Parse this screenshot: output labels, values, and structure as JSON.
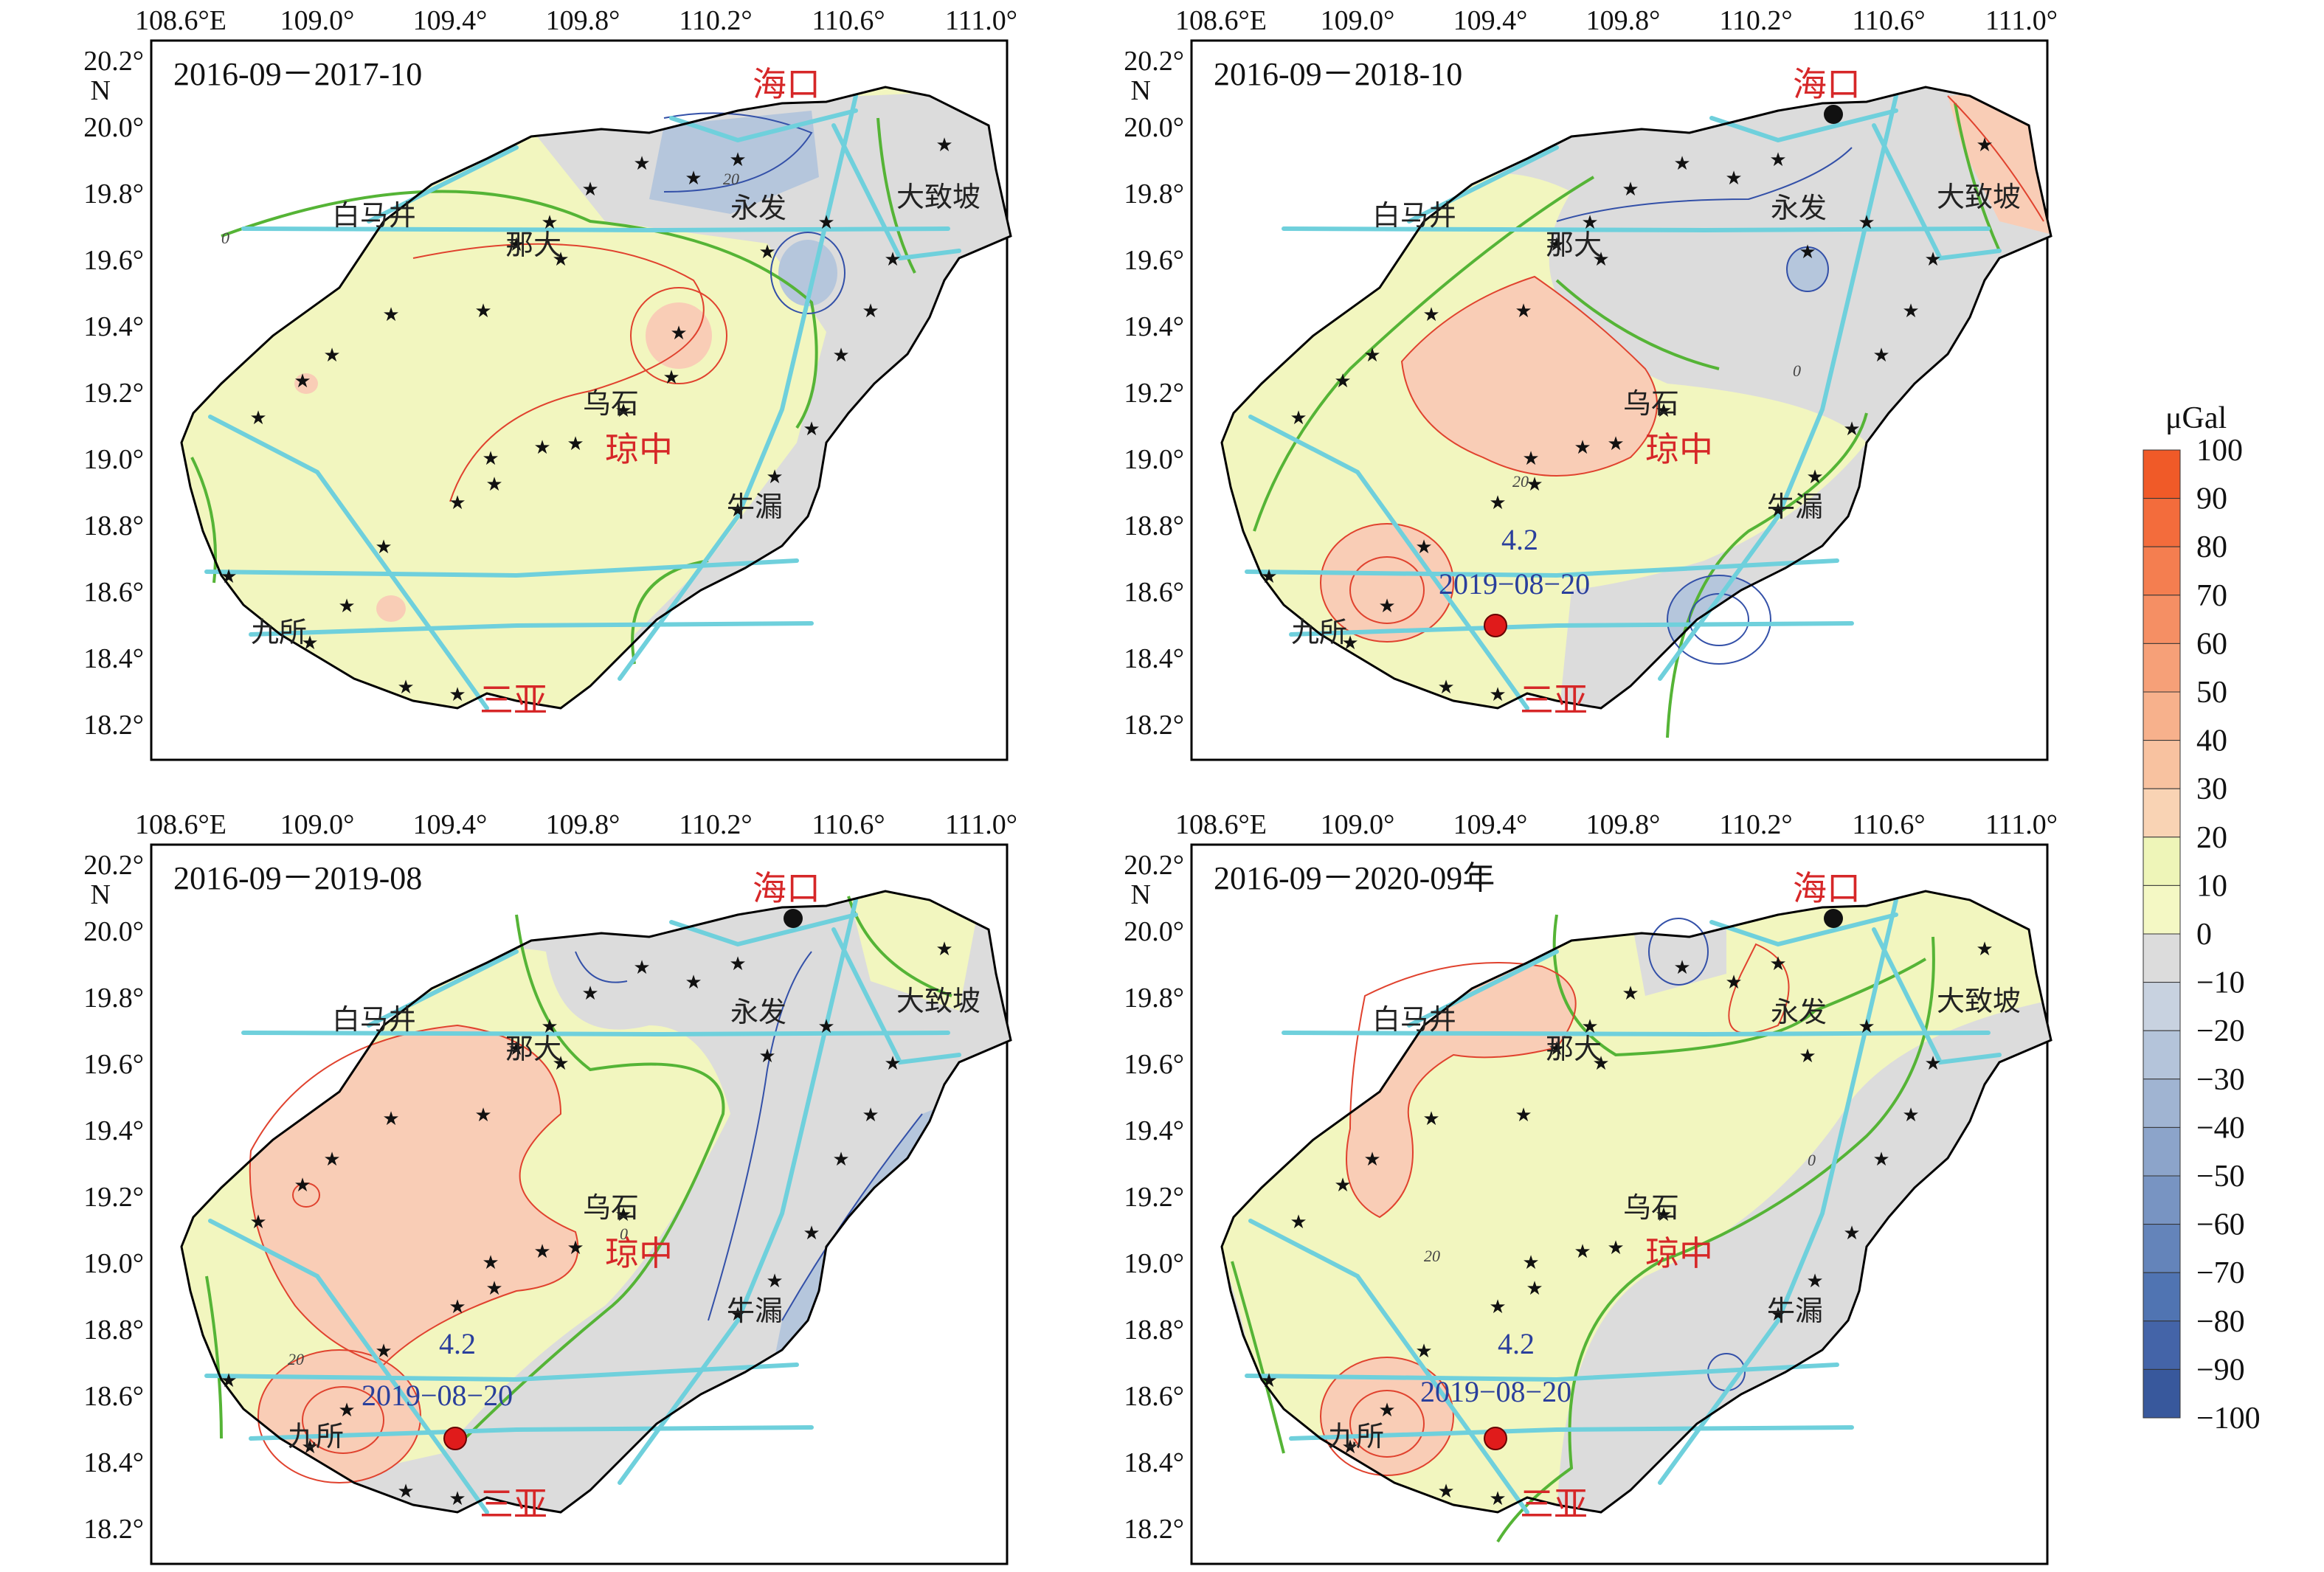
{
  "axis_labels": {
    "x": [
      "108.6°E",
      "109.0°",
      "109.4°",
      "109.8°",
      "110.2°",
      "110.6°",
      "111.0°"
    ],
    "y": [
      "20.2°",
      "20.0°",
      "19.8°",
      "19.6°",
      "19.4°",
      "19.2°",
      "19.0°",
      "18.8°",
      "18.6°",
      "18.4°",
      "18.2°"
    ],
    "north": "N"
  },
  "places": {
    "haikou": "海口",
    "qiongzhong": "琼中",
    "sanya": "三亚",
    "baishamen": "白马井",
    "nada": "那大",
    "yongfa": "永发",
    "dazhipo": "大致坡",
    "wushi": "乌石",
    "niulou": "牛漏",
    "jiusuo": "九所"
  },
  "earthquake": {
    "magnitude": "4.2",
    "date": "2019−08−20"
  },
  "panels": [
    {
      "title": "2016-09－2017-10",
      "show_quake": false
    },
    {
      "title": "2016-09－2018-10",
      "show_quake": true
    },
    {
      "title": "2016-09－2019-08",
      "show_quake": true
    },
    {
      "title": "2016-09－2020-09年",
      "show_quake": true
    }
  ],
  "contour_labels": [
    "0",
    "20",
    "0",
    "20",
    "0",
    "20",
    "0",
    "20"
  ],
  "legend": {
    "unit": "μGal",
    "levels": [
      "100",
      "90",
      "80",
      "70",
      "60",
      "50",
      "40",
      "30",
      "20",
      "10",
      "0",
      "−10",
      "−20",
      "−30",
      "−40",
      "−50",
      "−60",
      "−70",
      "−80",
      "−90",
      "−100"
    ],
    "colors": [
      "#f05a28",
      "#f36c3c",
      "#f47e50",
      "#f58f64",
      "#f6a078",
      "#f7b18c",
      "#f8c2a0",
      "#f9d3b4",
      "#eef5b8",
      "#f4f8c4",
      "#dcdcdc",
      "#c8d2e0",
      "#b4c4da",
      "#a0b4d2",
      "#8ca4ca",
      "#7894c2",
      "#6484ba",
      "#5074b2",
      "#4464a8",
      "#38589c"
    ]
  },
  "colors": {
    "positive": "#f9cdb6",
    "low_positive": "#f2f6bf",
    "negative": "#dcdcdc",
    "strong_negative": "#b5c6dc",
    "fault": "#6fd0dc",
    "zero_contour": "#55b436",
    "pos_contour": "#e0422e",
    "neg_contour": "#3350a8",
    "highlight": "#e01b1b"
  }
}
